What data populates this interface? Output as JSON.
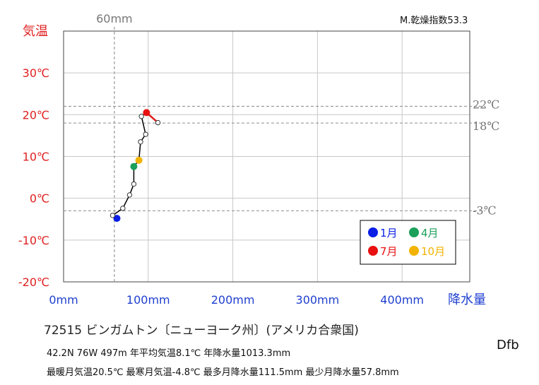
{
  "chart_data": {
    "type": "scatter",
    "x_axis": {
      "label": "降水量",
      "range": [
        0,
        480
      ],
      "ticks": [
        0,
        100,
        200,
        300,
        400
      ],
      "tick_labels": [
        "0mm",
        "100mm",
        "200mm",
        "300mm",
        "400mm"
      ],
      "color": "#1f3fd0"
    },
    "y_axis": {
      "label": "気温",
      "range": [
        -20,
        40
      ],
      "ticks": [
        -20,
        -10,
        0,
        10,
        20,
        30
      ],
      "tick_labels": [
        "-20℃",
        "-10℃",
        "0℃",
        "10℃",
        "20℃",
        "30℃"
      ],
      "color": "#e02020"
    },
    "grid": true,
    "reference_lines": {
      "vertical": [
        {
          "x": 60,
          "label": "60mm"
        }
      ],
      "horizontal": [
        {
          "y": 22,
          "label": "22℃"
        },
        {
          "y": 18,
          "label": "18℃"
        },
        {
          "y": -3,
          "label": "-3℃"
        }
      ],
      "color": "#999999"
    },
    "months": [
      {
        "month": 1,
        "precip": 63,
        "temp": -4.8
      },
      {
        "month": 2,
        "precip": 58,
        "temp": -4.1
      },
      {
        "month": 3,
        "precip": 70,
        "temp": -2.4
      },
      {
        "month": 4,
        "precip": 83,
        "temp": 7.6
      },
      {
        "month": 5,
        "precip": 78,
        "temp": 0.8
      },
      {
        "month": 6,
        "precip": 83,
        "temp": 3.4
      },
      {
        "month": 7,
        "precip": 98,
        "temp": 20.5
      },
      {
        "month": 8,
        "precip": 111.5,
        "temp": 18.1
      },
      {
        "month": 9,
        "precip": 97,
        "temp": 15.3
      },
      {
        "month": 10,
        "precip": 89,
        "temp": 9.1
      },
      {
        "month": 11,
        "precip": 91,
        "temp": 13.5
      },
      {
        "month": 12,
        "precip": 92,
        "temp": 19.6
      }
    ],
    "path_order": [
      1,
      2,
      3,
      5,
      6,
      4,
      10,
      11,
      9,
      12,
      7,
      8
    ],
    "jul_aug_segment_color": "#e02020",
    "line_color": "#000000",
    "legend": {
      "placement": "bottom-right",
      "items": [
        {
          "label": "1月",
          "month": 1,
          "color": "#0a1ee6"
        },
        {
          "label": "4月",
          "month": 4,
          "color": "#1aa05a"
        },
        {
          "label": "7月",
          "month": 7,
          "color": "#e81010"
        },
        {
          "label": "10月",
          "month": 10,
          "color": "#f2b400"
        }
      ]
    }
  },
  "aridity_label": "M.乾燥指数53.3",
  "station_title": "72515 ビンガムトン〔ニューヨーク州〕(アメリカ合衆国)",
  "stats_line1": "42.2N 76W 497m 年平均気温8.1℃ 年降水量1013.3mm",
  "stats_line2": "最暖月気温20.5℃ 最寒月気温-4.8℃ 最多月降水量111.5mm 最少月降水量57.8mm",
  "climate_code": "Dfb"
}
